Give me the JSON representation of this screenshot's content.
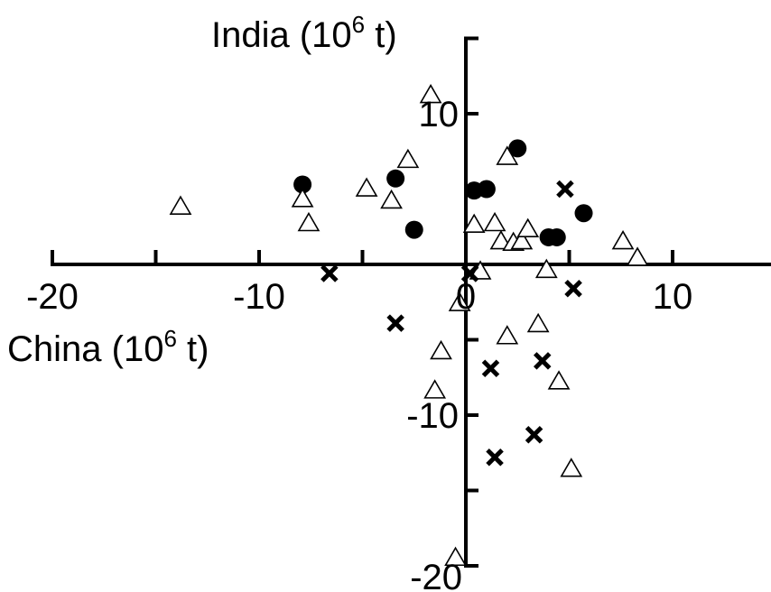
{
  "chart_data": {
    "type": "scatter",
    "title": "",
    "x_axis": {
      "label_main": "China (10",
      "label_sup": "6",
      "label_end": " t)",
      "range": [
        -20,
        15
      ],
      "ticks": [
        -20,
        -15,
        -10,
        -5,
        0,
        5,
        10
      ],
      "tick_labels": [
        {
          "value": -20,
          "text": "-20"
        },
        {
          "value": -10,
          "text": "-10"
        },
        {
          "value": 0,
          "text": "0"
        },
        {
          "value": 10,
          "text": "10"
        }
      ]
    },
    "y_axis": {
      "label_main": "India (10",
      "label_sup": "6",
      "label_end": " t)",
      "range": [
        -20,
        15
      ],
      "ticks": [
        -20,
        -15,
        -10,
        -5,
        5,
        10,
        15
      ],
      "tick_labels": [
        {
          "value": 10,
          "text": "10"
        },
        {
          "value": -10,
          "text": "-10"
        },
        {
          "value": -20,
          "text": "-20"
        }
      ]
    },
    "grid": false,
    "legend": "none",
    "series": [
      {
        "marker": "circle",
        "color": "#000000",
        "points": [
          [
            -7.9,
            5.3
          ],
          [
            -3.4,
            5.7
          ],
          [
            -2.5,
            2.3
          ],
          [
            0.4,
            4.9
          ],
          [
            1.0,
            5.0
          ],
          [
            2.5,
            7.7
          ],
          [
            4.0,
            1.8
          ],
          [
            4.4,
            1.8
          ],
          [
            5.7,
            3.4
          ]
        ]
      },
      {
        "marker": "triangle",
        "color": "#000000",
        "points": [
          [
            -13.8,
            3.8
          ],
          [
            -7.9,
            4.3
          ],
          [
            -7.6,
            2.7
          ],
          [
            -4.8,
            5.0
          ],
          [
            -3.6,
            4.2
          ],
          [
            -2.8,
            6.9
          ],
          [
            -1.7,
            11.2
          ],
          [
            -1.5,
            -8.4
          ],
          [
            -1.2,
            -5.8
          ],
          [
            -0.3,
            -2.6
          ],
          [
            -0.5,
            -19.5
          ],
          [
            0.4,
            2.6
          ],
          [
            0.7,
            -0.5
          ],
          [
            1.4,
            2.7
          ],
          [
            2.0,
            7.1
          ],
          [
            1.7,
            1.5
          ],
          [
            2.3,
            1.4
          ],
          [
            2.7,
            1.5
          ],
          [
            3.0,
            2.3
          ],
          [
            2.0,
            -4.8
          ],
          [
            3.5,
            -4.0
          ],
          [
            3.9,
            -0.4
          ],
          [
            4.5,
            -7.8
          ],
          [
            5.1,
            -13.6
          ],
          [
            7.6,
            1.5
          ],
          [
            8.3,
            0.4
          ]
        ]
      },
      {
        "marker": "x",
        "color": "#000000",
        "points": [
          [
            -6.6,
            -0.6
          ],
          [
            -3.4,
            -3.9
          ],
          [
            0.2,
            -0.6
          ],
          [
            1.2,
            -6.9
          ],
          [
            1.4,
            -12.8
          ],
          [
            3.3,
            -11.3
          ],
          [
            3.7,
            -6.4
          ],
          [
            4.8,
            5.0
          ],
          [
            5.2,
            -1.6
          ]
        ]
      }
    ]
  }
}
